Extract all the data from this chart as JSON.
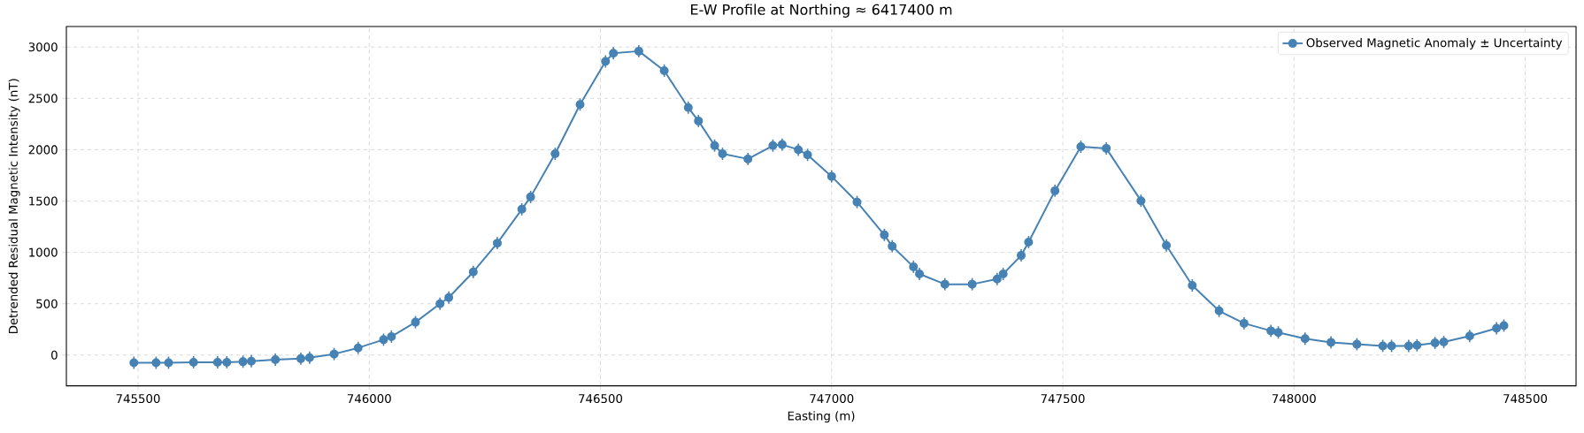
{
  "chart_data": {
    "type": "line",
    "title": "E-W Profile at Northing ≈ 6417400 m",
    "xlabel": "Easting (m)",
    "ylabel": "Detrended Residual Magnetic Intensity (nT)",
    "xlim": [
      745345,
      748610
    ],
    "ylim": [
      -300,
      3200
    ],
    "xticks": [
      745500,
      746000,
      746500,
      747000,
      747500,
      748000,
      748500
    ],
    "yticks": [
      0,
      500,
      1000,
      1500,
      2000,
      2500,
      3000
    ],
    "grid": true,
    "legend": "top right",
    "marker": "circle",
    "line_style": "solid",
    "series": [
      {
        "name": "Observed Magnetic Anomaly ± Uncertainty",
        "color": "#4682b4",
        "x": [
          745491,
          745539,
          745566,
          745620,
          745672,
          745692,
          745727,
          745745,
          745797,
          745852,
          745871,
          745924,
          745976,
          746031,
          746048,
          746100,
          746153,
          746172,
          746225,
          746277,
          746330,
          746349,
          746402,
          746456,
          746511,
          746528,
          746583,
          746638,
          746690,
          746712,
          746747,
          746764,
          746819,
          746873,
          746893,
          746928,
          746948,
          747000,
          747055,
          747114,
          747131,
          747177,
          747190,
          747245,
          747304,
          747358,
          747371,
          747410,
          747426,
          747483,
          747539,
          747594,
          747669,
          747724,
          747780,
          747838,
          747892,
          747950,
          747966,
          748024,
          748080,
          748136,
          748192,
          748211,
          748248,
          748266,
          748305,
          748324,
          748380,
          748438,
          748454
        ],
        "values": [
          -75,
          -75,
          -75,
          -70,
          -70,
          -70,
          -65,
          -60,
          -45,
          -35,
          -25,
          10,
          70,
          150,
          180,
          320,
          500,
          560,
          810,
          1090,
          1420,
          1540,
          1960,
          2440,
          2860,
          2940,
          2960,
          2770,
          2410,
          2280,
          2040,
          1960,
          1910,
          2040,
          2050,
          2000,
          1950,
          1740,
          1490,
          1170,
          1060,
          860,
          790,
          690,
          690,
          740,
          790,
          970,
          1100,
          1600,
          2029,
          2013,
          1503,
          1067,
          678,
          430,
          309,
          236,
          220,
          159,
          124,
          105,
          89,
          89,
          89,
          95,
          118,
          127,
          185,
          261,
          287
        ],
        "errors": [
          60,
          60,
          60,
          60,
          60,
          60,
          60,
          60,
          60,
          60,
          60,
          60,
          60,
          60,
          60,
          60,
          60,
          60,
          60,
          60,
          60,
          60,
          60,
          60,
          60,
          60,
          60,
          60,
          60,
          60,
          60,
          60,
          60,
          60,
          60,
          60,
          60,
          60,
          60,
          60,
          60,
          60,
          60,
          60,
          60,
          60,
          60,
          60,
          60,
          60,
          60,
          60,
          60,
          60,
          60,
          60,
          60,
          60,
          60,
          60,
          60,
          60,
          60,
          60,
          60,
          60,
          60,
          60,
          60,
          60,
          60
        ]
      }
    ]
  }
}
